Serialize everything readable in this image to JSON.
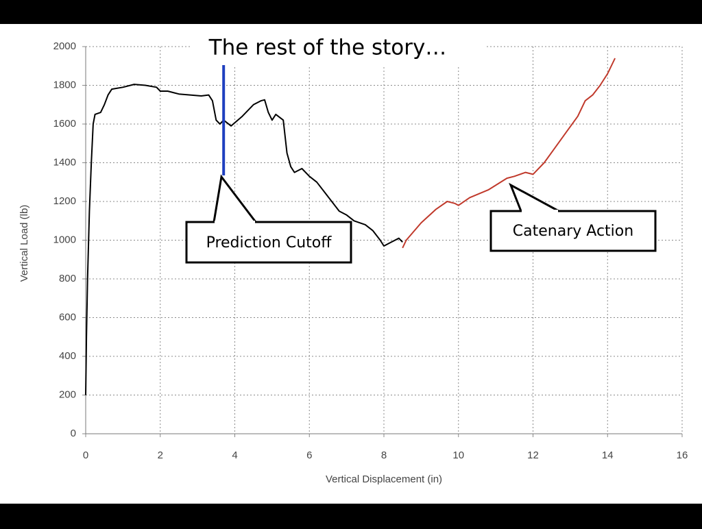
{
  "chart_data": {
    "type": "line",
    "title": "The rest of the story…",
    "x_label": "Vertical Displacement (in)",
    "y_label": "Vertical Load (lb)",
    "xlim": [
      0,
      16
    ],
    "xticks": [
      0,
      2,
      4,
      6,
      8,
      10,
      12,
      14,
      16
    ],
    "ylim": [
      0,
      2000
    ],
    "yticks": [
      0,
      200,
      400,
      600,
      800,
      1000,
      1200,
      1400,
      1600,
      1800,
      2000
    ],
    "grid": true,
    "series": [
      {
        "color": "#000000",
        "x": [
          0,
          0.02,
          0.05,
          0.1,
          0.15,
          0.2,
          0.25,
          0.4,
          0.5,
          0.6,
          0.7,
          1.0,
          1.3,
          1.6,
          1.9,
          2.0,
          2.2,
          2.5,
          2.8,
          3.1,
          3.3,
          3.4,
          3.5,
          3.6,
          3.7,
          3.9,
          4.2,
          4.5,
          4.7,
          4.8,
          4.9,
          5.0,
          5.1,
          5.3,
          5.4,
          5.5,
          5.6,
          5.8,
          6.0,
          6.2,
          6.4,
          6.6,
          6.8,
          7.0,
          7.2,
          7.5,
          7.7,
          7.9,
          8.0,
          8.2,
          8.4,
          8.5
        ],
        "values": [
          200,
          500,
          800,
          1150,
          1400,
          1600,
          1650,
          1660,
          1700,
          1750,
          1780,
          1790,
          1805,
          1800,
          1790,
          1770,
          1770,
          1755,
          1750,
          1745,
          1750,
          1720,
          1620,
          1600,
          1620,
          1590,
          1640,
          1700,
          1720,
          1725,
          1660,
          1620,
          1650,
          1620,
          1450,
          1380,
          1350,
          1370,
          1330,
          1300,
          1250,
          1200,
          1150,
          1130,
          1100,
          1080,
          1050,
          1000,
          970,
          990,
          1010,
          990
        ]
      },
      {
        "color": "#c0392b",
        "x": [
          8.5,
          8.6,
          9.0,
          9.4,
          9.7,
          9.9,
          10.0,
          10.3,
          10.8,
          11.3,
          11.5,
          11.8,
          12.0,
          12.3,
          12.6,
          12.9,
          13.2,
          13.4,
          13.6,
          13.8,
          14.0,
          14.2
        ],
        "values": [
          960,
          1000,
          1090,
          1160,
          1200,
          1190,
          1180,
          1220,
          1260,
          1320,
          1330,
          1350,
          1340,
          1400,
          1480,
          1560,
          1640,
          1720,
          1750,
          1800,
          1860,
          1940
        ]
      }
    ],
    "cutoff": {
      "x": 3.7,
      "color": "#1f3fbf"
    },
    "annotations": [
      "Prediction Cutoff",
      "Catenary Action"
    ]
  }
}
